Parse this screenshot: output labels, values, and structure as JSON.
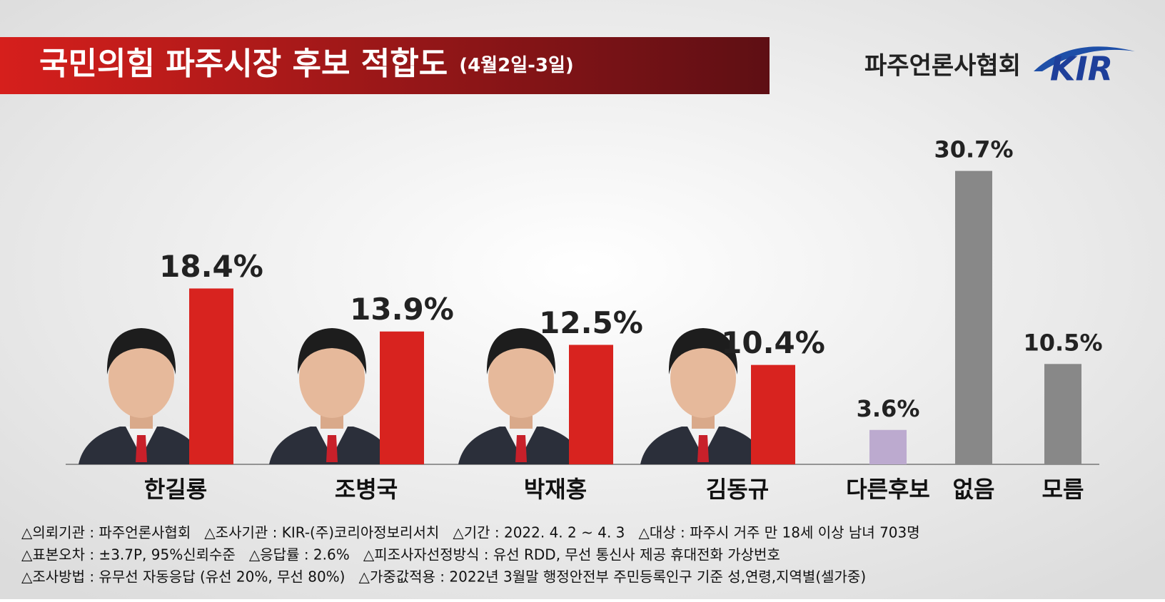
{
  "title": "국민의힘 파주시장 후보 적합도",
  "subtitle": "(4월2일-3일)",
  "publisher": "파주언론사협회",
  "logo": "KIR",
  "chart_data": {
    "type": "bar",
    "categories": [
      "한길룡",
      "조병국",
      "박재홍",
      "김동규",
      "다른후보",
      "없음",
      "모름"
    ],
    "values": [
      18.4,
      13.9,
      12.5,
      10.4,
      3.6,
      30.7,
      10.5
    ],
    "value_labels": [
      "18.4%",
      "13.9%",
      "12.5%",
      "10.4%",
      "3.6%",
      "30.7%",
      "10.5%"
    ],
    "colors": [
      "#d8231f",
      "#d8231f",
      "#d8231f",
      "#d8231f",
      "#bcaacf",
      "#888888",
      "#888888"
    ]
  },
  "notes": [
    "△의뢰기관 : 파주언론사협회   △조사기관 : KIR-(주)코리아정보리서치   △기간 : 2022. 4. 2 ~ 4. 3   △대상 : 파주시 거주 만 18세 이상 남녀 703명",
    "△표본오차 : ±3.7P, 95%신뢰수준   △응답률 : 2.6%   △피조사자선정방식 : 유선 RDD, 무선 통신사 제공 휴대전화 가상번호",
    "△조사방법 : 유무선 자동응답 (유선 20%, 무선 80%)   △가중값적용 : 2022년 3월말 행정안전부 주민등록인구 기준 성,연령,지역별(셀가중)"
  ]
}
